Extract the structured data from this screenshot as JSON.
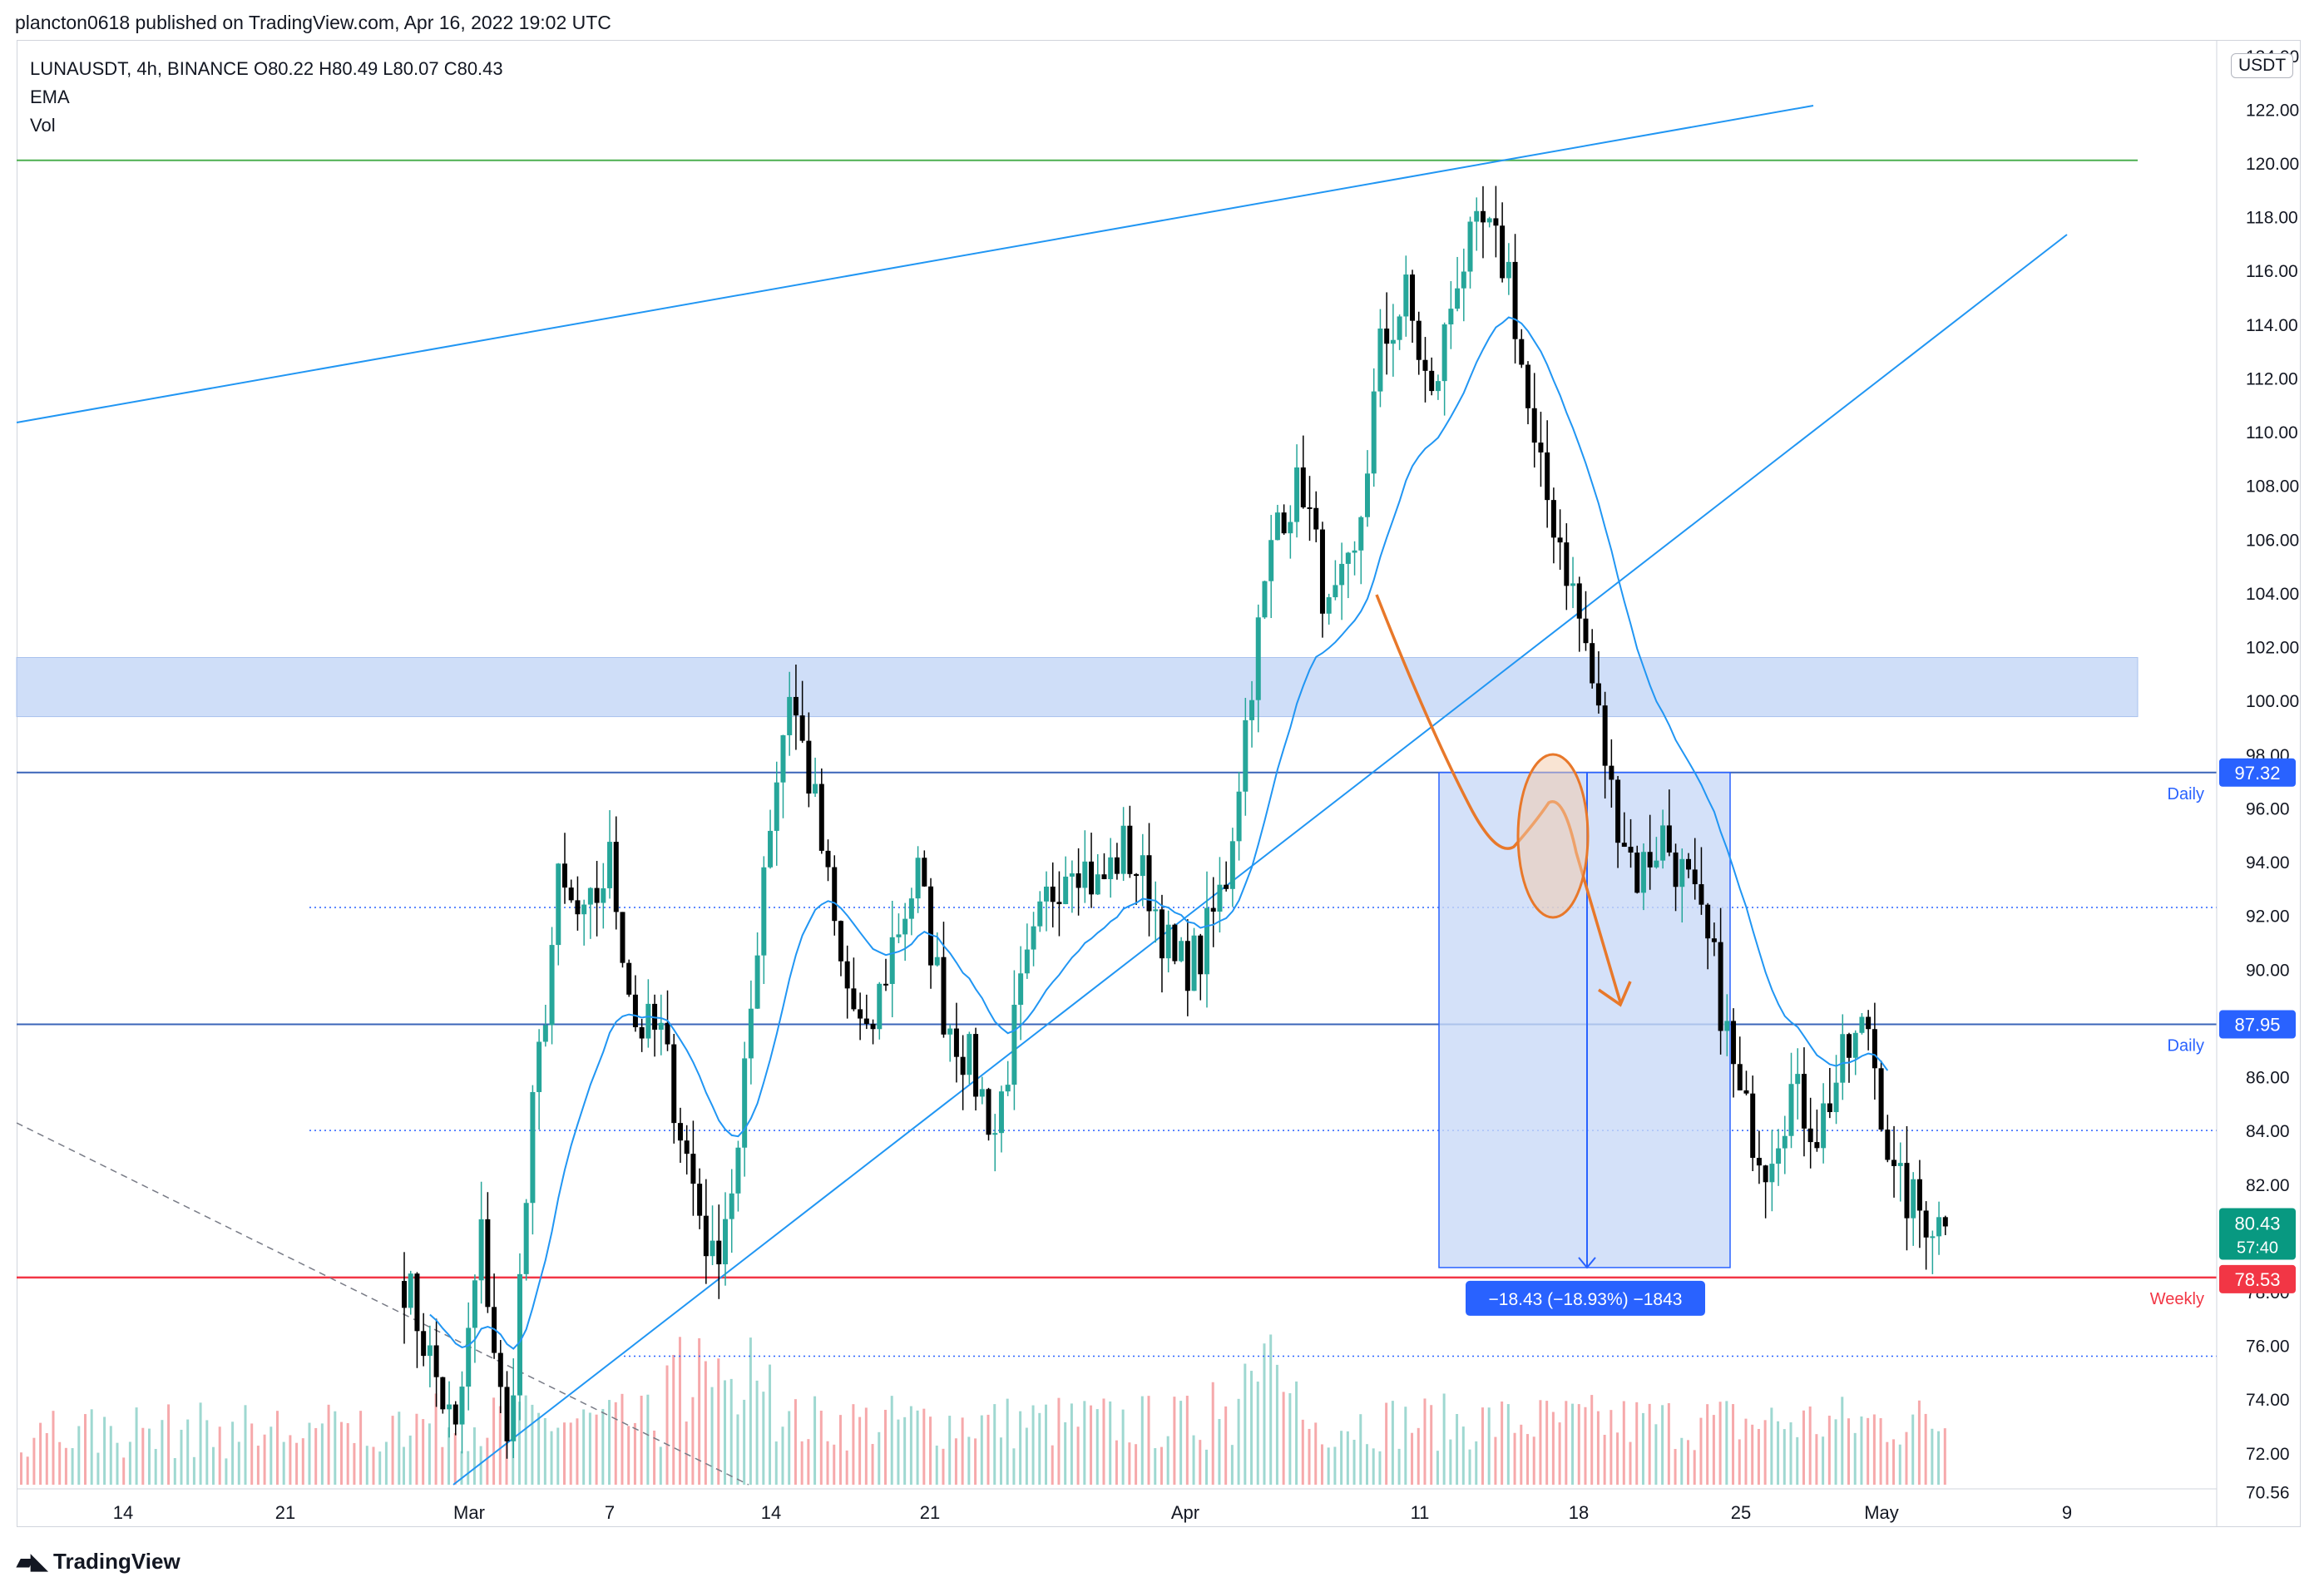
{
  "header": {
    "publish_note": "plancton0618 published on TradingView.com, Apr 16, 2022 19:02 UTC"
  },
  "legend": {
    "line1": "LUNAUSDT, 4h, BINANCE  O80.22  H80.49  L80.07  C80.43",
    "line2": "EMA",
    "line3": "Vol"
  },
  "axis": {
    "currency": "USDT",
    "y_ticks": [
      "70.56",
      "72.00",
      "74.00",
      "76.00",
      "78.00",
      "80.00",
      "82.00",
      "84.00",
      "86.00",
      "88.00",
      "90.00",
      "92.00",
      "94.00",
      "96.00",
      "98.00",
      "100.00",
      "102.00",
      "104.00",
      "106.00",
      "108.00",
      "110.00",
      "112.00",
      "114.00",
      "116.00",
      "118.00",
      "120.00",
      "122.00",
      "124.00"
    ],
    "x_ticks": [
      "14",
      "21",
      "Mar",
      "7",
      "14",
      "21",
      "Apr",
      "11",
      "18",
      "25",
      "May",
      "9"
    ]
  },
  "price_tags": {
    "level_1": "97.32",
    "level_2": "87.95",
    "current": "80.43",
    "countdown": "57:40",
    "weekly": "78.53"
  },
  "level_labels": {
    "daily_1": "Daily",
    "daily_2": "Daily",
    "weekly": "Weekly"
  },
  "measure_label": "−18.43 (−18.93%) −1843",
  "footer": {
    "brand": "TradingView"
  },
  "colors": {
    "up": "#26a69a",
    "down": "#000000",
    "ema": "#2196f3",
    "trendline": "#2196f3",
    "zone": "#bfd3f5",
    "weekly": "#f23645",
    "green_line": "#4caf50",
    "orange": "#e8782a",
    "measure_box": "#c9daf8",
    "tag_blue": "#2962ff",
    "tag_green": "#089981"
  },
  "chart_data": {
    "type": "candlestick",
    "symbol": "LUNAUSDT",
    "interval": "4h",
    "exchange": "BINANCE",
    "ylim": [
      70.56,
      124.0
    ],
    "x_labels": [
      "14",
      "21",
      "Mar",
      "7",
      "14",
      "21",
      "Apr",
      "11",
      "18",
      "25",
      "May",
      "9"
    ],
    "anchors": [
      {
        "t": 0,
        "p": 78.5
      },
      {
        "t": 8,
        "p": 72.5
      },
      {
        "t": 12,
        "p": 80.0
      },
      {
        "t": 16,
        "p": 72.0
      },
      {
        "t": 20,
        "p": 84.5
      },
      {
        "t": 24,
        "p": 93.0
      },
      {
        "t": 28,
        "p": 91.5
      },
      {
        "t": 32,
        "p": 94.0
      },
      {
        "t": 36,
        "p": 88.0
      },
      {
        "t": 40,
        "p": 87.5
      },
      {
        "t": 44,
        "p": 83.0
      },
      {
        "t": 48,
        "p": 79.0
      },
      {
        "t": 52,
        "p": 83.0
      },
      {
        "t": 56,
        "p": 94.0
      },
      {
        "t": 60,
        "p": 100.5
      },
      {
        "t": 64,
        "p": 96.0
      },
      {
        "t": 68,
        "p": 90.0
      },
      {
        "t": 72,
        "p": 87.0
      },
      {
        "t": 76,
        "p": 91.0
      },
      {
        "t": 80,
        "p": 93.5
      },
      {
        "t": 84,
        "p": 88.5
      },
      {
        "t": 88,
        "p": 86.5
      },
      {
        "t": 92,
        "p": 84.0
      },
      {
        "t": 96,
        "p": 89.0
      },
      {
        "t": 100,
        "p": 92.5
      },
      {
        "t": 104,
        "p": 94.5
      },
      {
        "t": 108,
        "p": 93.0
      },
      {
        "t": 112,
        "p": 94.5
      },
      {
        "t": 116,
        "p": 93.0
      },
      {
        "t": 120,
        "p": 90.0
      },
      {
        "t": 124,
        "p": 90.5
      },
      {
        "t": 128,
        "p": 93.5
      },
      {
        "t": 132,
        "p": 101.0
      },
      {
        "t": 136,
        "p": 107.0
      },
      {
        "t": 140,
        "p": 108.0
      },
      {
        "t": 144,
        "p": 103.0
      },
      {
        "t": 148,
        "p": 105.0
      },
      {
        "t": 152,
        "p": 113.0
      },
      {
        "t": 156,
        "p": 115.0
      },
      {
        "t": 160,
        "p": 111.0
      },
      {
        "t": 164,
        "p": 116.0
      },
      {
        "t": 168,
        "p": 117.5
      },
      {
        "t": 172,
        "p": 116.0
      },
      {
        "t": 176,
        "p": 109.0
      },
      {
        "t": 180,
        "p": 106.0
      },
      {
        "t": 184,
        "p": 102.0
      },
      {
        "t": 188,
        "p": 96.5
      },
      {
        "t": 192,
        "p": 93.5
      },
      {
        "t": 196,
        "p": 95.0
      },
      {
        "t": 200,
        "p": 93.0
      },
      {
        "t": 204,
        "p": 90.0
      },
      {
        "t": 208,
        "p": 85.0
      },
      {
        "t": 212,
        "p": 83.0
      },
      {
        "t": 216,
        "p": 85.5
      },
      {
        "t": 220,
        "p": 84.0
      },
      {
        "t": 224,
        "p": 86.5
      },
      {
        "t": 228,
        "p": 88.0
      },
      {
        "t": 232,
        "p": 82.0
      },
      {
        "t": 236,
        "p": 81.0
      },
      {
        "t": 240,
        "p": 80.4
      }
    ],
    "last": {
      "open": 80.22,
      "high": 80.49,
      "low": 80.07,
      "close": 80.43
    },
    "horizontal_levels": [
      {
        "price": 97.32,
        "label": "Daily"
      },
      {
        "price": 87.95,
        "label": "Daily"
      },
      {
        "price": 78.53,
        "label": "Weekly"
      },
      {
        "price": 120.1,
        "label": ""
      }
    ],
    "dotted_levels": [
      92.3,
      84.0,
      75.6
    ],
    "zone": {
      "from": 99.4,
      "to": 101.6
    },
    "measure": {
      "from": 97.32,
      "to": 78.9,
      "change": "−18.43 (−18.93%) −1843"
    },
    "grid": false,
    "legend_position": "top-left"
  }
}
